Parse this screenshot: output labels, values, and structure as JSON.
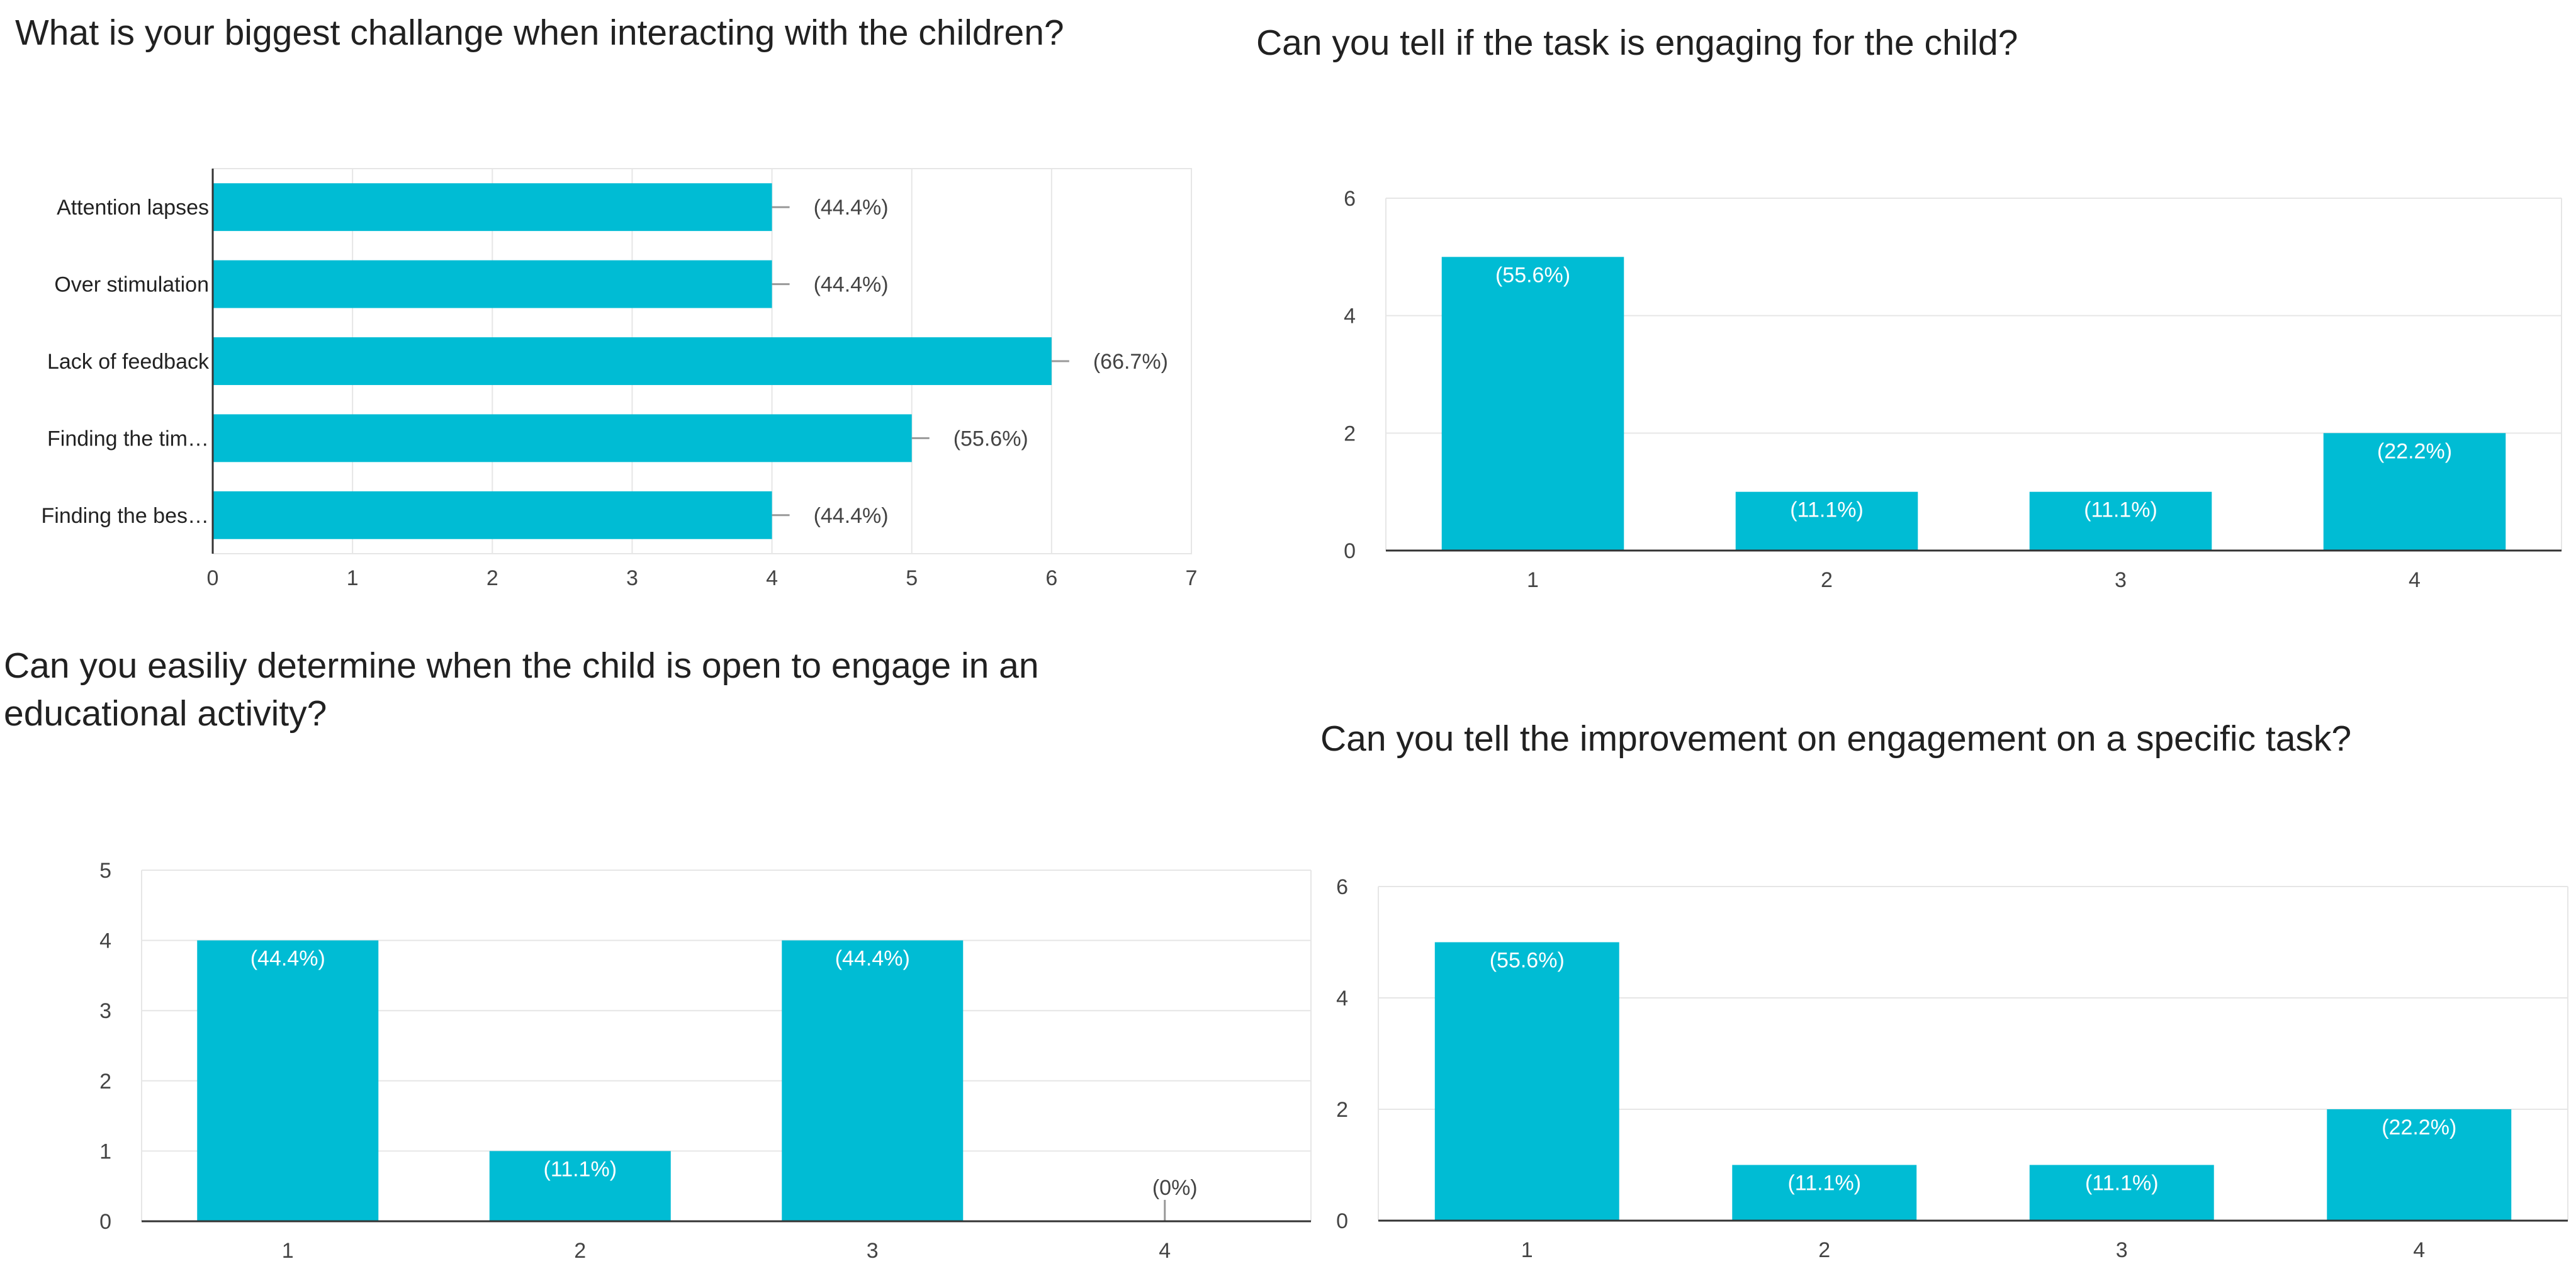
{
  "colors": {
    "bar": "#00bcd4",
    "grid": "#e6e6e6",
    "axis": "#333333",
    "leader": "#999999"
  },
  "chart_data": [
    {
      "type": "bar",
      "orientation": "horizontal",
      "title": "What is your biggest challange when interacting with the children?",
      "categories": [
        "Attention lapses",
        "Over stimulation",
        "Lack of feedback",
        "Finding the tim…",
        "Finding the bes…"
      ],
      "values": [
        4,
        4,
        6,
        5,
        4
      ],
      "data_labels": [
        "(44.4%)",
        "(44.4%)",
        "(66.7%)",
        "(55.6%)",
        "(44.4%)"
      ],
      "xlim": [
        0,
        7
      ],
      "ticks": [
        0,
        1,
        2,
        3,
        4,
        5,
        6,
        7
      ],
      "grid": true
    },
    {
      "type": "bar",
      "title": "Can you tell if the task is engaging for the child?",
      "categories": [
        "1",
        "2",
        "3",
        "4"
      ],
      "values": [
        5,
        1,
        1,
        2
      ],
      "data_labels": [
        "(55.6%)",
        "(11.1%)",
        "(11.1%)",
        "(22.2%)"
      ],
      "ylim": [
        0,
        6
      ],
      "ticks": [
        0,
        2,
        4,
        6
      ],
      "grid": true
    },
    {
      "type": "bar",
      "title": "Can you easiliy determine when the child is open to engage in an educational activity?",
      "categories": [
        "1",
        "2",
        "3",
        "4"
      ],
      "values": [
        4,
        1,
        4,
        0
      ],
      "data_labels": [
        "(44.4%)",
        "(11.1%)",
        "(44.4%)",
        "(0%)"
      ],
      "ylim": [
        0,
        5
      ],
      "ticks": [
        0,
        1,
        2,
        3,
        4,
        5
      ],
      "grid": true
    },
    {
      "type": "bar",
      "title": "Can you tell the improvement on engagement on a specific task?",
      "categories": [
        "1",
        "2",
        "3",
        "4"
      ],
      "values": [
        5,
        1,
        1,
        2
      ],
      "data_labels": [
        "(55.6%)",
        "(11.1%)",
        "(11.1%)",
        "(22.2%)"
      ],
      "ylim": [
        0,
        6
      ],
      "ticks": [
        0,
        2,
        4,
        6
      ],
      "grid": true
    }
  ]
}
